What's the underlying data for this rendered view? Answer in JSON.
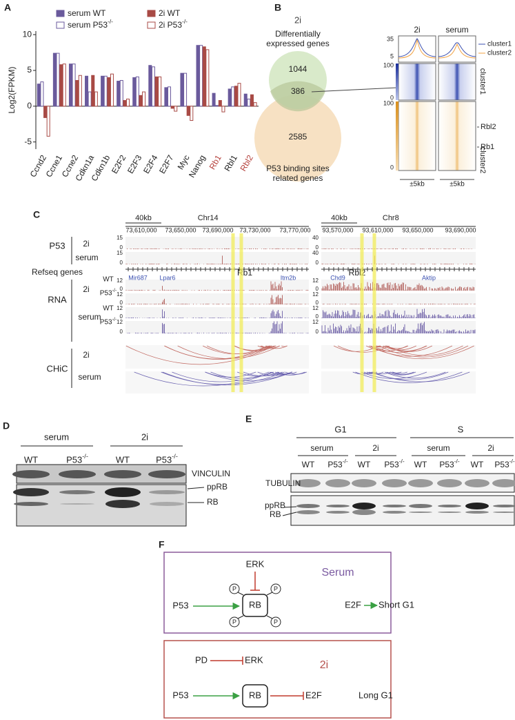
{
  "panels": [
    "A",
    "B",
    "C",
    "D",
    "E",
    "F"
  ],
  "chart_data": {
    "type": "bar",
    "y_label": "Log2(FPKM)",
    "categories": [
      "Ccnd2",
      "Ccne1",
      "Ccne2",
      "Cdkn1a",
      "Cdkn1b",
      "E2F2",
      "E2F3",
      "E2F4",
      "E2F7",
      "Myc",
      "Nanog",
      "Rb1",
      "Rbl1",
      "Rbl2"
    ],
    "category_label_colors": [
      "#222222",
      "#222222",
      "#222222",
      "#222222",
      "#222222",
      "#222222",
      "#222222",
      "#222222",
      "#222222",
      "#222222",
      "#222222",
      "#b5413c",
      "#222222",
      "#b5413c"
    ],
    "series": [
      {
        "name": "serum WT",
        "color": "#6a5a9c",
        "fill": true,
        "values": [
          3.1,
          7.4,
          5.9,
          4.2,
          4.2,
          3.5,
          4.0,
          5.7,
          2.6,
          4.6,
          8.5,
          1.8,
          2.4,
          1.7
        ]
      },
      {
        "name": "serum P53-/-",
        "color": "#6a5a9c",
        "fill": false,
        "values": [
          3.4,
          7.4,
          5.9,
          2.0,
          4.2,
          3.6,
          4.1,
          5.5,
          2.7,
          4.6,
          8.5,
          0.1,
          2.7,
          1.0
        ]
      },
      {
        "name": "2i WT",
        "color": "#a84a45",
        "fill": true,
        "values": [
          -1.6,
          5.8,
          3.6,
          4.3,
          4.0,
          0.8,
          1.5,
          4.1,
          -0.3,
          -1.3,
          8.3,
          0.8,
          2.8,
          1.6
        ]
      },
      {
        "name": "2i P53-/-",
        "color": "#a84a45",
        "fill": false,
        "values": [
          -4.2,
          5.9,
          4.3,
          2.0,
          4.5,
          1.0,
          2.0,
          4.1,
          -0.7,
          -2.0,
          7.9,
          -0.8,
          3.2,
          0.5
        ]
      }
    ],
    "ylim": [
      -6,
      10.5
    ],
    "yticks": [
      -5,
      0,
      5,
      10
    ]
  },
  "panel_b": {
    "venn_title": "2i",
    "set1": "Differentially expressed genes",
    "set2": "P53 binding sites related genes",
    "only1": 1044,
    "both": 386,
    "only2": 2585,
    "columns": [
      "2i",
      "serum"
    ],
    "legend": [
      "cluster1",
      "cluster2"
    ],
    "profile_ticks": [
      35,
      5
    ],
    "heat_ticks": [
      100,
      0
    ],
    "clusters": [
      "cluster1",
      "cluster2"
    ],
    "genes": [
      "Rbl2",
      "Rb1"
    ],
    "span": "±5kb"
  },
  "panel_c": {
    "rows": {
      "p53": "P53",
      "refseq": "Refseq genes",
      "rna": "RNA",
      "chic": "CHiC"
    },
    "conditions": [
      "2i",
      "serum"
    ],
    "genotypes": [
      "WT",
      "P53-/-"
    ],
    "left": {
      "scale": "40kb",
      "chrom": "Chr14",
      "coords": [
        "73,610,000",
        "73,650,000",
        "73,690,000",
        "73,730,000",
        "73,770,000"
      ],
      "p53_max": 15,
      "rna_max": 12,
      "zero": 0,
      "genes": [
        "Mir687",
        "Lpar6",
        "Rb1",
        "Itm2b"
      ]
    },
    "right": {
      "scale": "40kb",
      "chrom": "Chr8",
      "coords": [
        "93,570,000",
        "93,610,000",
        "93,650,000",
        "93,690,000"
      ],
      "p53_max": 40,
      "rna_max": 12,
      "zero": 0,
      "genes": [
        "Chd9",
        "Rbl2",
        "Aktip"
      ]
    }
  },
  "panel_d": {
    "conditions": [
      "serum",
      "2i"
    ],
    "genotypes": [
      "WT",
      "P53-/-"
    ],
    "bands": [
      "VINCULIN",
      "ppRB",
      "RB"
    ]
  },
  "panel_e": {
    "phases": [
      "G1",
      "S"
    ],
    "conditions": [
      "serum",
      "2i"
    ],
    "genotypes": [
      "WT",
      "P53-/-"
    ],
    "bands": [
      "TUBULIN",
      "ppRB",
      "RB"
    ]
  },
  "panel_f": {
    "serum": {
      "title": "Serum",
      "erk": "ERK",
      "p53": "P53",
      "rb": "RB",
      "e2f": "E2F",
      "outcome": "Short G1",
      "phospho": "P"
    },
    "twoi": {
      "title": "2i",
      "pd": "PD",
      "erk": "ERK",
      "p53": "P53",
      "rb": "RB",
      "e2f": "E2F",
      "outcome": "Long G1"
    }
  }
}
